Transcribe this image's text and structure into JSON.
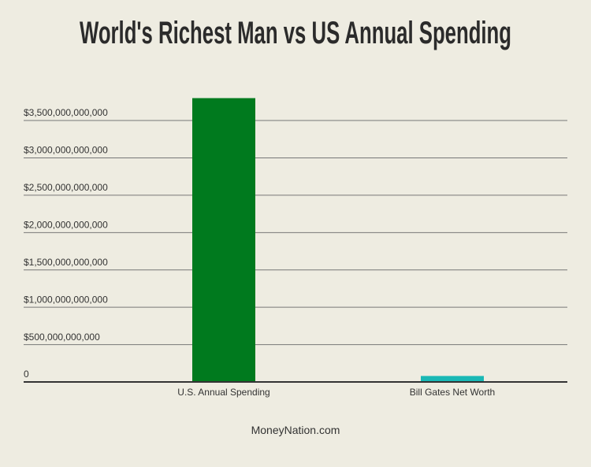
{
  "chart_data": {
    "type": "bar",
    "title": "World's Richest Man vs US Annual Spending",
    "categories": [
      "U.S. Annual Spending",
      "Bill Gates Net Worth"
    ],
    "values": [
      3800000000000,
      80000000000
    ],
    "colors": [
      "#007a1e",
      "#1ab8b5"
    ],
    "ylim": [
      0,
      3800000000000
    ],
    "yticks": [
      0,
      {
        "value": 500000000000,
        "label": "$500,000,000,000"
      },
      {
        "value": 1000000000000,
        "label": "$1,000,000,000,000"
      },
      {
        "value": 1500000000000,
        "label": "$1,500,000,000,000"
      },
      {
        "value": 2000000000000,
        "label": "$2,000,000,000,000"
      },
      {
        "value": 2500000000000,
        "label": "$2,500,000,000,000"
      },
      {
        "value": 3000000000000,
        "label": "$3,000,000,000,000"
      },
      {
        "value": 3500000000000,
        "label": "$3,500,000,000,000"
      }
    ],
    "grid": true,
    "source": "MoneyNation.com"
  }
}
